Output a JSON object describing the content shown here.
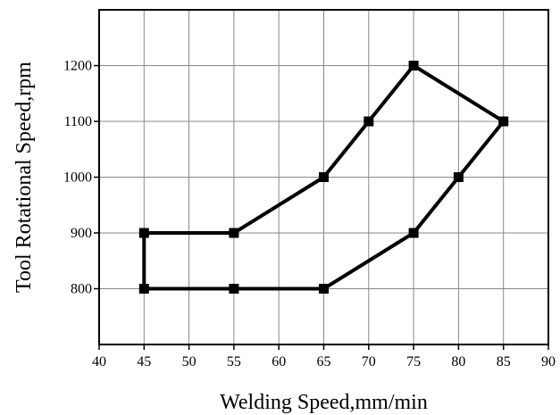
{
  "chart_data": {
    "type": "line",
    "title": "",
    "xlabel": "Welding Speed,mm/min",
    "ylabel": "Tool Rotational Speed,rpm",
    "xlim": [
      40,
      90
    ],
    "ylim": [
      700,
      1300
    ],
    "xticks": [
      40,
      45,
      50,
      55,
      60,
      65,
      70,
      75,
      80,
      85,
      90
    ],
    "yticks": [
      800,
      900,
      1000,
      1100,
      1200
    ],
    "grid": true,
    "legend": "none",
    "series": [
      {
        "color": "#000000",
        "marker": "square",
        "points": [
          {
            "x": 45,
            "y": 800
          },
          {
            "x": 45,
            "y": 900
          },
          {
            "x": 55,
            "y": 900
          },
          {
            "x": 65,
            "y": 1000
          },
          {
            "x": 70,
            "y": 1100
          },
          {
            "x": 75,
            "y": 1200
          },
          {
            "x": 85,
            "y": 1100
          },
          {
            "x": 80,
            "y": 1000
          },
          {
            "x": 75,
            "y": 900
          },
          {
            "x": 65,
            "y": 800
          },
          {
            "x": 55,
            "y": 800
          },
          {
            "x": 45,
            "y": 800
          }
        ]
      }
    ]
  }
}
